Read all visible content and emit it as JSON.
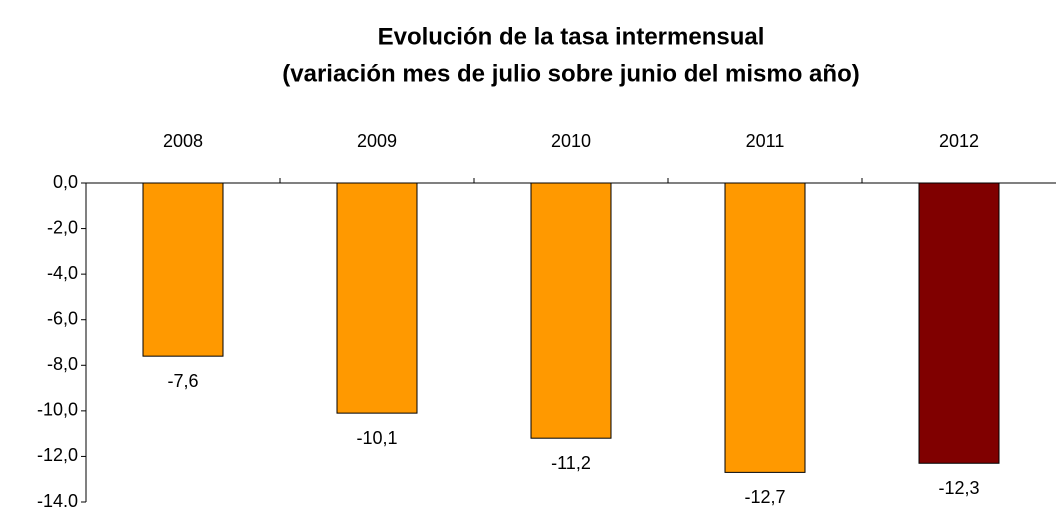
{
  "chart_data": {
    "type": "bar",
    "title": "Evolución de la tasa intermensual",
    "subtitle": "(variación mes de julio sobre junio del mismo año)",
    "categories": [
      "2008",
      "2009",
      "2010",
      "2011",
      "2012"
    ],
    "values": [
      -7.6,
      -10.1,
      -11.2,
      -12.7,
      -12.3
    ],
    "value_labels": [
      "-7,6",
      "-10,1",
      "-11,2",
      "-12,7",
      "-12,3"
    ],
    "colors": [
      "#ff9900",
      "#ff9900",
      "#ff9900",
      "#ff9900",
      "#800000"
    ],
    "ylim": [
      -14,
      0
    ],
    "yticks": [
      {
        "value": 0,
        "label": "0,0"
      },
      {
        "value": -2,
        "label": "-2,0"
      },
      {
        "value": -4,
        "label": "-4,0"
      },
      {
        "value": -6,
        "label": "-6,0"
      },
      {
        "value": -8,
        "label": "-8,0"
      },
      {
        "value": -10,
        "label": "-10,0"
      },
      {
        "value": -12,
        "label": "-12,0"
      },
      {
        "value": -14,
        "label": "-14,0"
      }
    ],
    "grid": false
  }
}
